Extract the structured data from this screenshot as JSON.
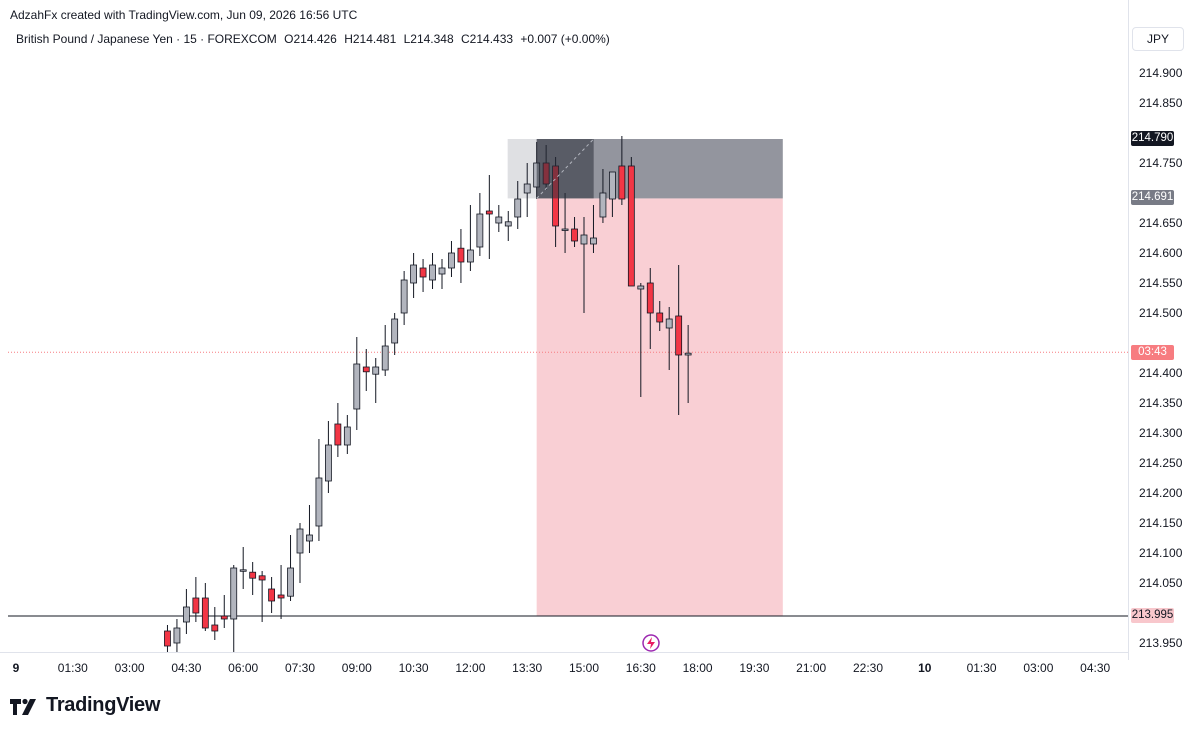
{
  "header": {
    "credit": "AdzahFx created with TradingView.com, Jun 09, 2026 16:56 UTC",
    "symbol": "British Pound / Japanese Yen · 15 · FOREXCOM",
    "open": "O214.426",
    "high": "H214.481",
    "low": "L214.348",
    "close": "C214.433",
    "change": "+0.007 (+0.00%)",
    "currency": "JPY"
  },
  "brand": {
    "name": "TradingView"
  },
  "colors": {
    "up": "#b2b5be",
    "down": "#f23645",
    "wick": "#131722",
    "stop_zone": "#787b86",
    "target_zone": "#f8c7cc",
    "current_price": "#f77c80"
  },
  "price_tags": {
    "stop": "214.790",
    "entry": "214.691",
    "countdown": "03:43",
    "target": "213.995"
  },
  "chart_data": {
    "type": "candlestick",
    "symbol": "GBPJPY",
    "interval": "15",
    "y_range": [
      213.925,
      214.935
    ],
    "y_ticks": [
      "214.900",
      "214.850",
      "214.750",
      "214.650",
      "214.600",
      "214.550",
      "214.500",
      "214.400",
      "214.350",
      "214.300",
      "214.250",
      "214.200",
      "214.150",
      "214.100",
      "214.050",
      "213.950"
    ],
    "x_ticks": [
      "9",
      "01:30",
      "03:00",
      "04:30",
      "06:00",
      "07:30",
      "09:00",
      "10:30",
      "12:00",
      "13:30",
      "15:00",
      "16:30",
      "18:00",
      "19:30",
      "21:00",
      "22:30",
      "10",
      "01:30",
      "03:00",
      "04:30"
    ],
    "x_ticks_bold": [
      "9",
      "10"
    ],
    "candle_start_time": "03:45",
    "candle_interval_minutes": 15,
    "candles": [
      [
        213.925,
        213.928,
        213.922,
        213.926
      ],
      [
        213.97,
        213.98,
        213.93,
        213.945
      ],
      [
        213.95,
        213.99,
        213.935,
        213.975
      ],
      [
        213.985,
        214.04,
        213.965,
        214.01
      ],
      [
        214.025,
        214.06,
        213.985,
        214.0
      ],
      [
        214.025,
        214.05,
        213.97,
        213.975
      ],
      [
        213.98,
        214.01,
        213.955,
        213.97
      ],
      [
        213.995,
        214.03,
        213.975,
        213.99
      ],
      [
        213.99,
        214.08,
        213.925,
        214.075
      ],
      [
        214.07,
        214.11,
        214.04,
        214.072
      ],
      [
        214.068,
        214.085,
        214.03,
        214.058
      ],
      [
        214.062,
        214.07,
        213.985,
        214.055
      ],
      [
        214.04,
        214.06,
        214.0,
        214.02
      ],
      [
        214.03,
        214.08,
        213.99,
        214.025
      ],
      [
        214.028,
        214.13,
        214.02,
        214.075
      ],
      [
        214.1,
        214.15,
        214.05,
        214.14
      ],
      [
        214.12,
        214.18,
        214.1,
        214.13
      ],
      [
        214.145,
        214.29,
        214.12,
        214.225
      ],
      [
        214.22,
        214.32,
        214.2,
        214.28
      ],
      [
        214.315,
        214.35,
        214.26,
        214.28
      ],
      [
        214.28,
        214.33,
        214.265,
        214.31
      ],
      [
        214.34,
        214.46,
        214.305,
        214.415
      ],
      [
        214.41,
        214.44,
        214.37,
        214.402
      ],
      [
        214.398,
        214.425,
        214.35,
        214.41
      ],
      [
        214.405,
        214.48,
        214.395,
        214.445
      ],
      [
        214.45,
        214.5,
        214.43,
        214.49
      ],
      [
        214.5,
        214.57,
        214.48,
        214.555
      ],
      [
        214.55,
        214.6,
        214.525,
        214.58
      ],
      [
        214.575,
        214.59,
        214.535,
        214.56
      ],
      [
        214.555,
        214.6,
        214.54,
        214.58
      ],
      [
        214.565,
        214.59,
        214.54,
        214.575
      ],
      [
        214.575,
        214.62,
        214.56,
        214.6
      ],
      [
        214.608,
        214.64,
        214.55,
        214.585
      ],
      [
        214.585,
        214.68,
        214.57,
        214.605
      ],
      [
        214.61,
        214.7,
        214.595,
        214.665
      ],
      [
        214.67,
        214.73,
        214.59,
        214.665
      ],
      [
        214.65,
        214.68,
        214.635,
        214.66
      ],
      [
        214.645,
        214.67,
        214.62,
        214.652
      ],
      [
        214.66,
        214.72,
        214.64,
        214.69
      ],
      [
        214.7,
        214.75,
        214.66,
        214.715
      ],
      [
        214.71,
        214.785,
        214.69,
        214.75
      ],
      [
        214.75,
        214.78,
        214.705,
        214.715
      ],
      [
        214.745,
        214.76,
        214.61,
        214.645
      ],
      [
        214.64,
        214.7,
        214.6,
        214.64
      ],
      [
        214.64,
        214.66,
        214.61,
        214.62
      ],
      [
        214.615,
        214.66,
        214.5,
        214.63
      ],
      [
        214.615,
        214.68,
        214.6,
        214.625
      ],
      [
        214.66,
        214.74,
        214.65,
        214.7
      ],
      [
        214.69,
        214.73,
        214.66,
        214.735
      ],
      [
        214.745,
        214.795,
        214.68,
        214.69
      ],
      [
        214.745,
        214.76,
        214.55,
        214.545
      ],
      [
        214.54,
        214.55,
        214.36,
        214.545
      ],
      [
        214.55,
        214.575,
        214.44,
        214.5
      ],
      [
        214.5,
        214.52,
        214.47,
        214.485
      ],
      [
        214.475,
        214.51,
        214.405,
        214.49
      ],
      [
        214.495,
        214.58,
        214.33,
        214.43
      ],
      [
        214.43,
        214.48,
        214.35,
        214.433
      ]
    ],
    "position": {
      "type": "short",
      "entry": 214.691,
      "stop": 214.79,
      "target": 213.995,
      "start_time": "13:45",
      "end_time": "20:15"
    },
    "current_price": 214.433
  }
}
